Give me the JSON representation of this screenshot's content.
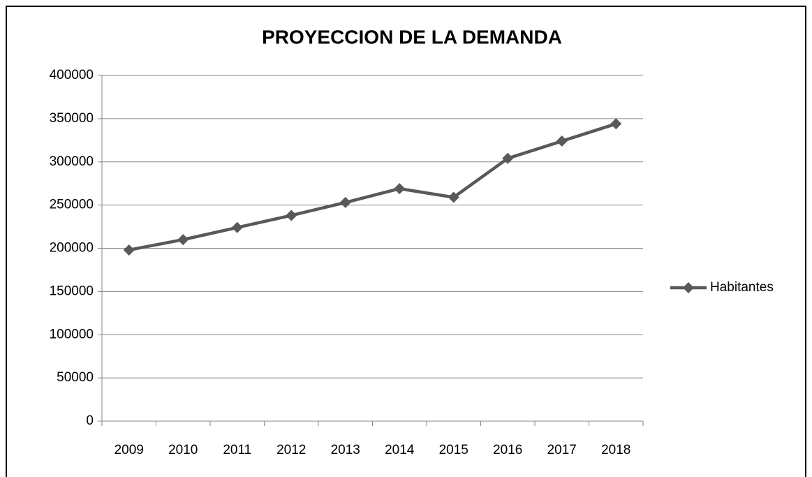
{
  "chart_data": {
    "type": "line",
    "title": "PROYECCION DE LA DEMANDA",
    "categories": [
      "2009",
      "2010",
      "2011",
      "2012",
      "2013",
      "2014",
      "2015",
      "2016",
      "2017",
      "2018"
    ],
    "series": [
      {
        "name": "Habitantes",
        "color": "#595959",
        "values": [
          198000,
          210000,
          224000,
          238000,
          253000,
          269000,
          259000,
          304000,
          324000,
          344000
        ]
      }
    ],
    "ylim": [
      0,
      400000
    ],
    "yticks": [
      0,
      50000,
      100000,
      150000,
      200000,
      250000,
      300000,
      350000,
      400000
    ],
    "grid": true,
    "legend": "right"
  }
}
